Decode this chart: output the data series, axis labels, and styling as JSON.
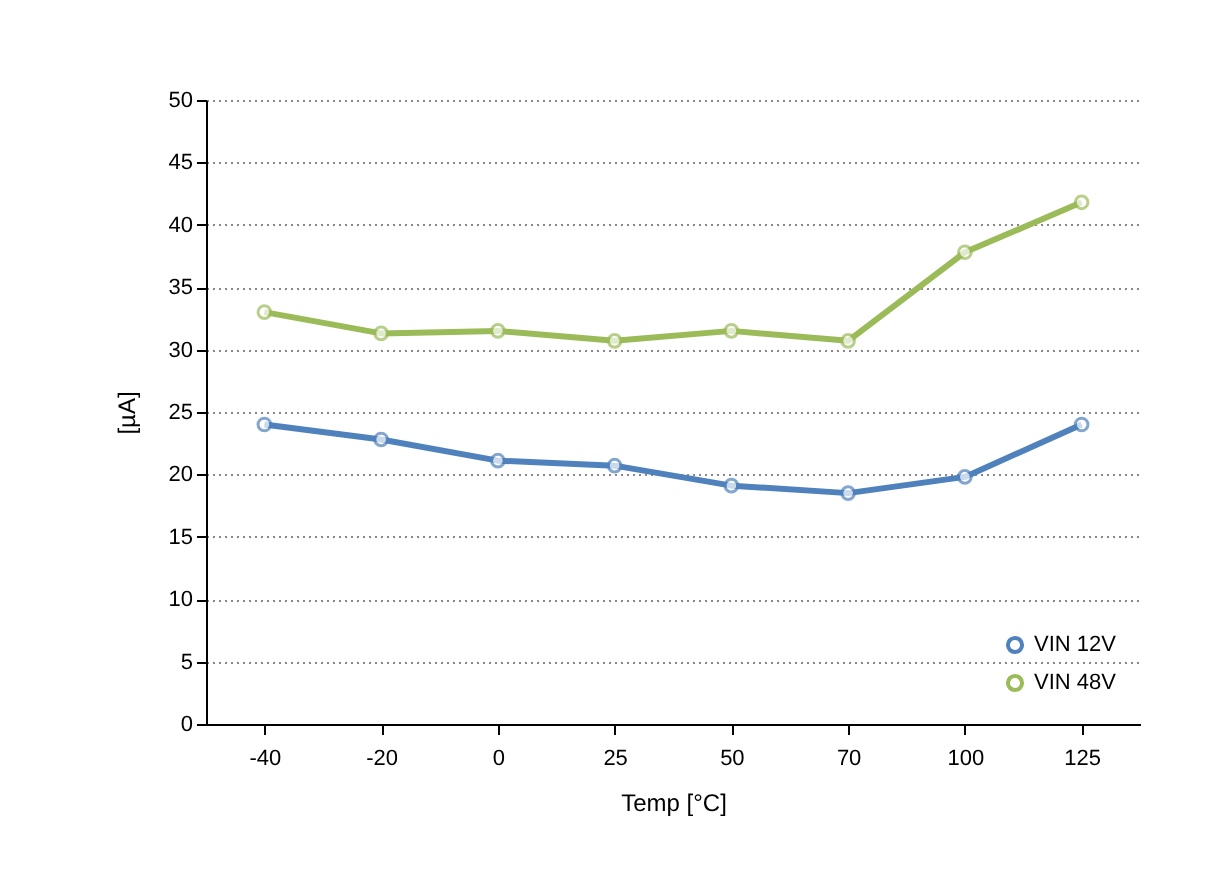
{
  "chart_data": {
    "type": "line",
    "xlabel": "Temp [°C]",
    "ylabel": "[µA]",
    "categories": [
      "-40",
      "-20",
      "0",
      "25",
      "50",
      "70",
      "100",
      "125"
    ],
    "series": [
      {
        "name": "VIN 12V",
        "color": "#4f81bd",
        "values": [
          24.0,
          22.8,
          21.1,
          20.7,
          19.1,
          18.5,
          19.8,
          24.0
        ]
      },
      {
        "name": "VIN 48V",
        "color": "#9bbb59",
        "values": [
          33.0,
          31.3,
          31.5,
          30.7,
          31.5,
          30.7,
          37.8,
          41.8
        ]
      }
    ],
    "ylim": [
      0,
      50
    ],
    "yticks": [
      0,
      5,
      10,
      15,
      20,
      25,
      30,
      35,
      40,
      45,
      50
    ],
    "grid": "y",
    "legend": "bottom right",
    "marker": "circle",
    "line_style": "solid"
  }
}
